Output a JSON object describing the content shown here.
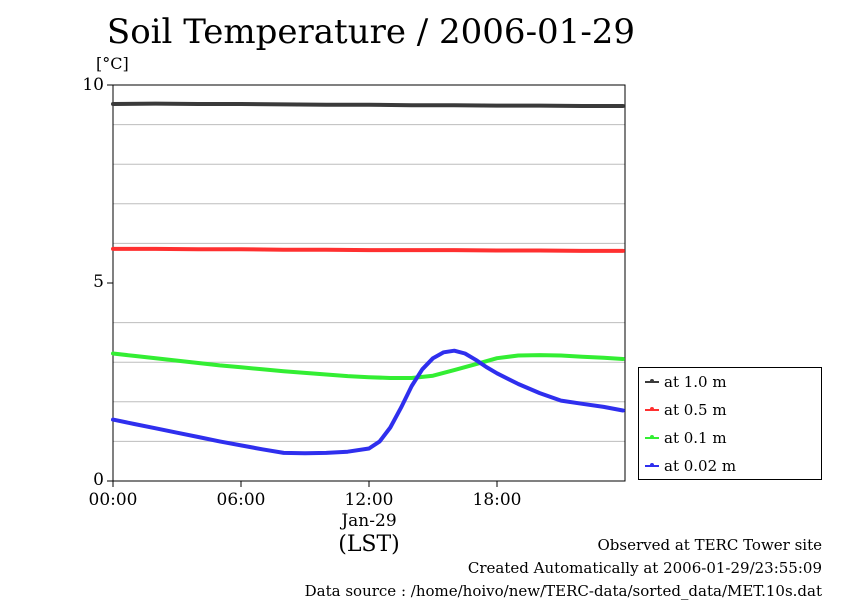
{
  "chart_data": {
    "type": "line",
    "title": "Soil Temperature / 2006-01-29",
    "ylabel": "[°C]",
    "xlabel": "(LST)",
    "x_date_label": "Jan-29",
    "ylim": [
      0,
      10
    ],
    "yticks": [
      "0",
      "5",
      "10"
    ],
    "y_minor_grid": [
      1,
      2,
      3,
      4,
      6,
      7,
      8,
      9
    ],
    "xlim_hours": [
      0,
      24
    ],
    "xticks": [
      {
        "hour": 0,
        "label": "00:00"
      },
      {
        "hour": 6,
        "label": "06:00"
      },
      {
        "hour": 12,
        "label": "12:00"
      },
      {
        "hour": 18,
        "label": "18:00"
      }
    ],
    "grid": true,
    "legend_position": "right",
    "series": [
      {
        "name": "at 1.0 m",
        "color": "#3a3a3a",
        "x": [
          0,
          2,
          4,
          6,
          8,
          10,
          12,
          14,
          16,
          18,
          20,
          22,
          23.9
        ],
        "y": [
          9.52,
          9.53,
          9.52,
          9.52,
          9.51,
          9.5,
          9.5,
          9.49,
          9.49,
          9.48,
          9.48,
          9.47,
          9.47
        ]
      },
      {
        "name": "at 0.5 m",
        "color": "#ff3030",
        "x": [
          0,
          2,
          4,
          6,
          8,
          10,
          12,
          14,
          16,
          18,
          20,
          22,
          23.9
        ],
        "y": [
          5.86,
          5.86,
          5.85,
          5.85,
          5.84,
          5.84,
          5.83,
          5.83,
          5.83,
          5.82,
          5.82,
          5.81,
          5.81
        ]
      },
      {
        "name": "at 0.1 m",
        "color": "#33ee33",
        "x": [
          0,
          1,
          2,
          3,
          4,
          5,
          6,
          7,
          8,
          9,
          10,
          11,
          12,
          13,
          14,
          15,
          16,
          17,
          18,
          19,
          20,
          21,
          22,
          23,
          23.9
        ],
        "y": [
          3.22,
          3.16,
          3.1,
          3.04,
          2.98,
          2.92,
          2.87,
          2.82,
          2.77,
          2.73,
          2.69,
          2.65,
          2.62,
          2.6,
          2.6,
          2.66,
          2.8,
          2.95,
          3.1,
          3.17,
          3.18,
          3.17,
          3.14,
          3.11,
          3.08
        ]
      },
      {
        "name": "at 0.02 m",
        "color": "#2f2fee",
        "x": [
          0,
          1,
          2,
          3,
          4,
          5,
          6,
          7,
          8,
          9,
          10,
          11,
          12,
          12.5,
          13,
          13.5,
          14,
          14.5,
          15,
          15.5,
          16,
          16.5,
          17,
          17.5,
          18,
          19,
          20,
          21,
          22,
          23,
          23.9
        ],
        "y": [
          1.55,
          1.44,
          1.33,
          1.22,
          1.11,
          1.0,
          0.9,
          0.8,
          0.71,
          0.7,
          0.71,
          0.74,
          0.82,
          1.0,
          1.35,
          1.85,
          2.4,
          2.82,
          3.1,
          3.25,
          3.29,
          3.22,
          3.06,
          2.88,
          2.72,
          2.45,
          2.22,
          2.03,
          1.95,
          1.87,
          1.78
        ]
      }
    ]
  },
  "footer": {
    "observed": "Observed at TERC Tower site",
    "created": "Created Automatically at 2006-01-29/23:55:09",
    "source": "Data source : /home/hoivo/new/TERC-data/sorted_data/MET.10s.dat"
  }
}
